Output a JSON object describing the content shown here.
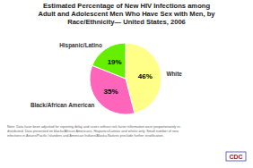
{
  "chart_data": {
    "type": "pie",
    "title": "Estimated Percentage of New HIV Infections among\nAdult and Adolescent Men Who Have Sex with Men, by\nRace/Ethnicity— United States, 2006",
    "categories": [
      "White",
      "Black/African American",
      "Hispanic/Latino"
    ],
    "values": [
      46,
      35,
      19
    ],
    "value_labels": [
      "46%",
      "35%",
      "19%"
    ],
    "data_labels": true,
    "colors": [
      "#FFFF88",
      "#FF66BB",
      "#66EE00"
    ],
    "annotations": [
      "Note: Data have been adjusted for reporting delay and cases without risk factor information were proportionately re-\ndistributed. Data presented on blacks/African Americans, Hispanics/Latinos and whites only.  Small number of new\ninfections in Asians/Pacific Islanders and American Indians/Alaska Natives preclude further stratification.",
      "CDC"
    ]
  }
}
